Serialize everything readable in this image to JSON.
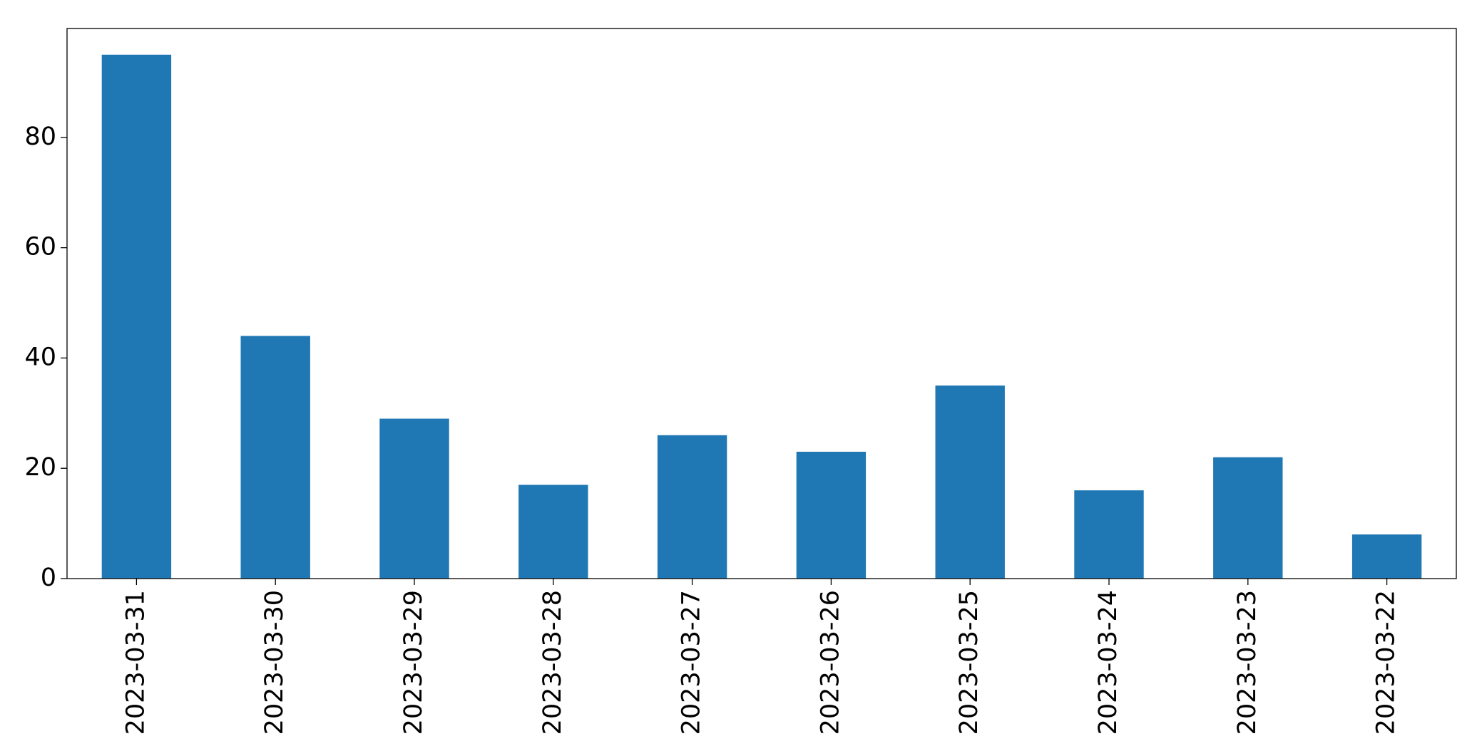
{
  "chart_data": {
    "type": "bar",
    "categories": [
      "2023-03-31",
      "2023-03-30",
      "2023-03-29",
      "2023-03-28",
      "2023-03-27",
      "2023-03-26",
      "2023-03-25",
      "2023-03-24",
      "2023-03-23",
      "2023-03-22"
    ],
    "values": [
      95,
      44,
      29,
      17,
      26,
      23,
      35,
      16,
      22,
      8
    ],
    "color": "#1f77b4",
    "ylim": [
      0,
      99.75
    ],
    "yticks": [
      0,
      20,
      40,
      60,
      80
    ],
    "grid": false
  }
}
